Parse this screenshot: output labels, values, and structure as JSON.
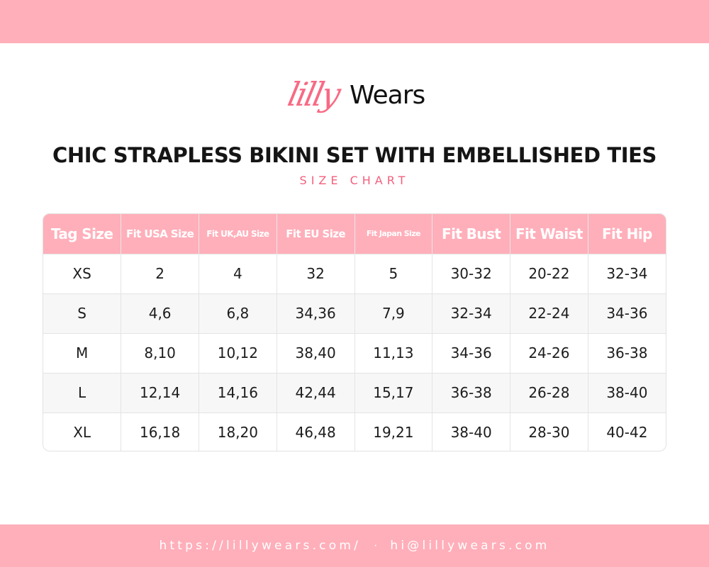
{
  "brand": {
    "logo_part1": "lilly",
    "logo_part2": "Wears",
    "primary_color": "#ffafba",
    "accent_color": "#f86a84"
  },
  "title": "CHIC STRAPLESS BIKINI SET WITH EMBELLISHED TIES",
  "subtitle": "SIZE CHART",
  "table": {
    "headers": [
      "Tag Size",
      "Fit USA Size",
      "Fit UK,AU Size",
      "Fit EU Size",
      "Fit Japan Size",
      "Fit Bust",
      "Fit Waist",
      "Fit Hip"
    ],
    "rows": [
      [
        "XS",
        "2",
        "4",
        "32",
        "5",
        "30-32",
        "20-22",
        "32-34"
      ],
      [
        "S",
        "4,6",
        "6,8",
        "34,36",
        "7,9",
        "32-34",
        "22-24",
        "34-36"
      ],
      [
        "M",
        "8,10",
        "10,12",
        "38,40",
        "11,13",
        "34-36",
        "24-26",
        "36-38"
      ],
      [
        "L",
        "12,14",
        "14,16",
        "42,44",
        "15,17",
        "36-38",
        "26-28",
        "38-40"
      ],
      [
        "XL",
        "16,18",
        "18,20",
        "46,48",
        "19,21",
        "38-40",
        "28-30",
        "40-42"
      ]
    ]
  },
  "footer": {
    "website": "https://lillywears.com/",
    "separator": "·",
    "email": "hi@lillywears.com"
  }
}
